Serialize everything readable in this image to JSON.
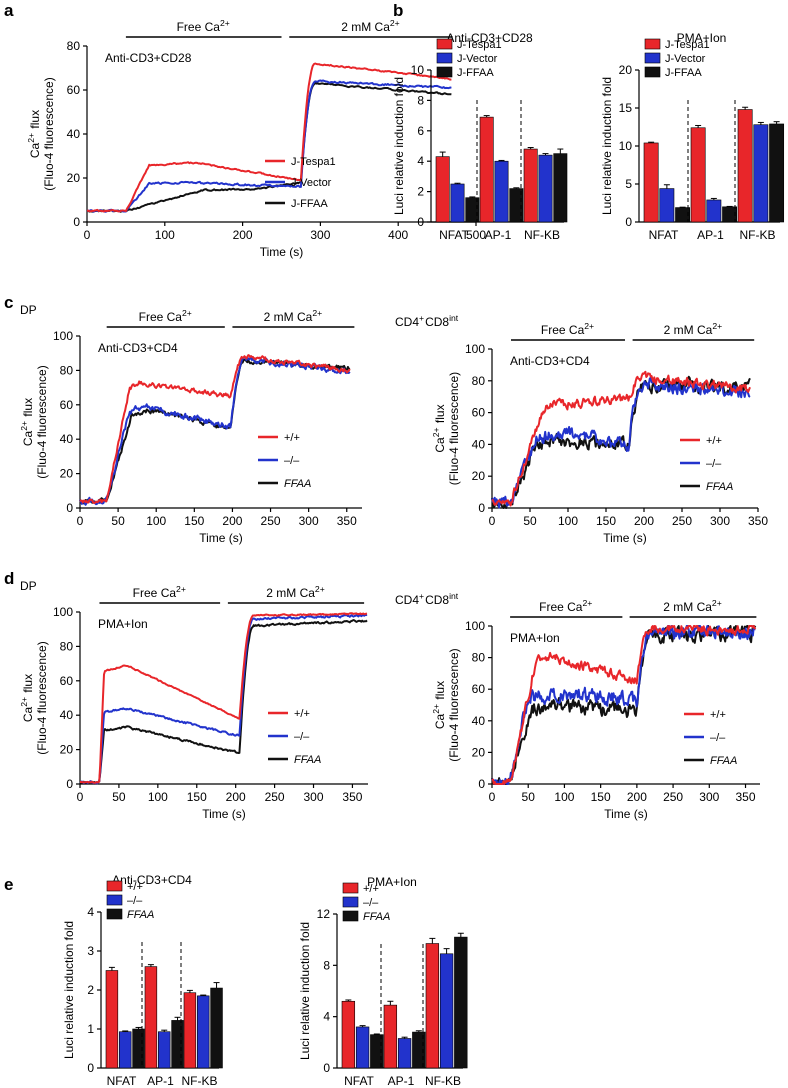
{
  "colors": {
    "red": "#e8262a",
    "blue": "#2233cc",
    "black": "#111111"
  },
  "panel_labels": [
    "a",
    "b",
    "c",
    "d",
    "e"
  ],
  "chart_data": [
    {
      "id": "a",
      "type": "line",
      "title": "Anti-CD3+CD28",
      "bracket_free": "Free Ca2+",
      "bracket_ca": "2 mM Ca2+",
      "xlabel": "Time (s)",
      "ylabel1": "Ca2+ flux",
      "ylabel2": "(Fluo-4 fluorescence)",
      "xlim": [
        0,
        500
      ],
      "ylim": [
        0,
        80
      ],
      "xticks": [
        0,
        100,
        200,
        300,
        400,
        500
      ],
      "yticks": [
        0,
        20,
        40,
        60,
        80
      ],
      "xtick_labels": [
        "0",
        "100",
        "200",
        "300",
        "400",
        "500"
      ],
      "ytick_labels": [
        "0",
        "20",
        "40",
        "60",
        "80"
      ],
      "free_range": [
        50,
        250
      ],
      "ca_range": [
        260,
        470
      ],
      "switch_t": 275,
      "end_t": 470,
      "series": [
        {
          "name": "J-Tespa1",
          "color": "red",
          "base": 5,
          "plateau": 27,
          "rise_end": 80,
          "peak_t": 140,
          "dec": 8,
          "ca_peak": 72,
          "ca_end": 65,
          "noise": 0.3
        },
        {
          "name": "J-Vector",
          "color": "blue",
          "base": 5,
          "plateau": 18,
          "rise_end": 80,
          "peak_t": 120,
          "dec": 2,
          "ca_peak": 64,
          "ca_end": 61,
          "noise": 0.4
        },
        {
          "name": "J-FFAA",
          "color": "black",
          "base": 5,
          "plateau": 15,
          "rise_end": 150,
          "peak_t": 220,
          "dec": -3,
          "ca_peak": 63,
          "ca_end": 58,
          "noise": 0.3
        }
      ]
    },
    {
      "id": "b1",
      "type": "bar",
      "title": "Anti-CD3+CD28",
      "ylabel": "Luci relative induction fold",
      "ylim": [
        0,
        10
      ],
      "yticks": [
        0,
        2,
        4,
        6,
        8,
        10
      ],
      "ytick_labels": [
        "0",
        "2",
        "4",
        "6",
        "8",
        "10"
      ],
      "categories": [
        "NFAT",
        "AP-1",
        "NF-KB"
      ],
      "series": [
        {
          "name": "J-Tespa1",
          "color": "red",
          "values": [
            4.3,
            6.9,
            4.8
          ],
          "err": [
            0.3,
            0.1,
            0.1
          ]
        },
        {
          "name": "J-Vector",
          "color": "blue",
          "values": [
            2.5,
            4.0,
            4.4
          ],
          "err": [
            0.05,
            0.05,
            0.1
          ]
        },
        {
          "name": "J-FFAA",
          "color": "black",
          "values": [
            1.6,
            2.2,
            4.5
          ],
          "err": [
            0.05,
            0.05,
            0.3
          ]
        }
      ]
    },
    {
      "id": "b2",
      "type": "bar",
      "title": "PMA+Ion",
      "ylabel": "Luci relative induction fold",
      "ylim": [
        0,
        20
      ],
      "yticks": [
        0,
        5,
        10,
        15,
        20
      ],
      "ytick_labels": [
        "0",
        "5",
        "10",
        "15",
        "20"
      ],
      "categories": [
        "NFAT",
        "AP-1",
        "NF-KB"
      ],
      "series": [
        {
          "name": "J-Tespa1",
          "color": "red",
          "values": [
            10.4,
            12.4,
            14.8
          ],
          "err": [
            0.1,
            0.3,
            0.3
          ]
        },
        {
          "name": "J-Vector",
          "color": "blue",
          "values": [
            4.4,
            2.9,
            12.8
          ],
          "err": [
            0.5,
            0.2,
            0.3
          ]
        },
        {
          "name": "J-FFAA",
          "color": "black",
          "values": [
            1.9,
            2.0,
            12.9
          ],
          "err": [
            0.05,
            0.05,
            0.3
          ]
        }
      ]
    },
    {
      "id": "c1",
      "type": "line",
      "corner": "DP",
      "title": "Anti-CD3+CD4",
      "bracket_free": "Free Ca2+",
      "bracket_ca": "2 mM Ca2+",
      "xlabel": "Time (s)",
      "ylabel1": "Ca2+ flux",
      "ylabel2": "(Fluo-4 fluorescence)",
      "xlim": [
        0,
        370
      ],
      "ylim": [
        0,
        100
      ],
      "xticks": [
        0,
        50,
        100,
        150,
        200,
        250,
        300,
        350
      ],
      "yticks": [
        0,
        20,
        40,
        60,
        80,
        100
      ],
      "xtick_labels": [
        "0",
        "50",
        "100",
        "150",
        "200",
        "250",
        "300",
        "350"
      ],
      "ytick_labels": [
        "0",
        "20",
        "40",
        "60",
        "80",
        "100"
      ],
      "free_range": [
        35,
        190
      ],
      "ca_range": [
        200,
        360
      ],
      "switch_t": 198,
      "end_t": 355,
      "series": [
        {
          "name": "+/+",
          "color": "red",
          "base": 4,
          "plateau": 73,
          "rise_end": 65,
          "peak_t": 80,
          "dec": 8,
          "ca_peak": 88,
          "ca_end": 80,
          "noise": 1.2
        },
        {
          "name": "–/–",
          "color": "blue",
          "base": 4,
          "plateau": 59,
          "rise_end": 65,
          "peak_t": 85,
          "dec": 12,
          "ca_peak": 87,
          "ca_end": 79,
          "noise": 1.5
        },
        {
          "name": "FFAA",
          "color": "black",
          "italic": true,
          "base": 4,
          "plateau": 57,
          "rise_end": 68,
          "peak_t": 90,
          "dec": 11,
          "ca_peak": 86,
          "ca_end": 81,
          "noise": 1.2
        }
      ]
    },
    {
      "id": "c2",
      "type": "line",
      "corner": "CD4+CD8int",
      "title": "Anti-CD3+CD4",
      "bracket_free": "Free Ca2+",
      "bracket_ca": "2 mM Ca2+",
      "xlabel": "Time (s)",
      "ylabel1": "Ca2+ flux",
      "ylabel2": "(Fluo-4 fluorescence)",
      "xlim": [
        0,
        350
      ],
      "ylim": [
        0,
        100
      ],
      "xticks": [
        0,
        50,
        100,
        150,
        200,
        250,
        300,
        350
      ],
      "yticks": [
        0,
        20,
        40,
        60,
        80,
        100
      ],
      "xtick_labels": [
        "0",
        "50",
        "100",
        "150",
        "200",
        "250",
        "300",
        "350"
      ],
      "ytick_labels": [
        "0",
        "20",
        "40",
        "60",
        "80",
        "100"
      ],
      "free_range": [
        25,
        175
      ],
      "ca_range": [
        185,
        345
      ],
      "switch_t": 180,
      "end_t": 340,
      "series": [
        {
          "name": "+/+",
          "color": "red",
          "base": 4,
          "plateau": 67,
          "rise_end": 70,
          "peak_t": 130,
          "dec": -2,
          "ca_peak": 82,
          "ca_end": 75,
          "noise": 2.5
        },
        {
          "name": "–/–",
          "color": "blue",
          "base": 4,
          "plateau": 47,
          "rise_end": 60,
          "peak_t": 110,
          "dec": 8,
          "ca_peak": 78,
          "ca_end": 72,
          "noise": 3.5
        },
        {
          "name": "FFAA",
          "color": "black",
          "italic": true,
          "base": 4,
          "plateau": 43,
          "rise_end": 60,
          "peak_t": 80,
          "dec": 3,
          "ca_peak": 76,
          "ca_end": 77,
          "noise": 3.5
        }
      ]
    },
    {
      "id": "d1",
      "type": "line",
      "corner": "DP",
      "title": "PMA+Ion",
      "bracket_free": "Free Ca2+",
      "bracket_ca": "2 mM Ca2+",
      "xlabel": "Time (s)",
      "ylabel1": "Ca2+ flux",
      "ylabel2": "(Fluo-4 fluorescence)",
      "xlim": [
        0,
        370
      ],
      "ylim": [
        0,
        100
      ],
      "xticks": [
        0,
        50,
        100,
        150,
        200,
        250,
        300,
        350
      ],
      "yticks": [
        0,
        20,
        40,
        60,
        80,
        100
      ],
      "xtick_labels": [
        "0",
        "50",
        "100",
        "150",
        "200",
        "250",
        "300",
        "350"
      ],
      "ytick_labels": [
        "0",
        "20",
        "40",
        "60",
        "80",
        "100"
      ],
      "free_range": [
        25,
        180
      ],
      "ca_range": [
        190,
        365
      ],
      "switch_t": 205,
      "end_t": 370,
      "series": [
        {
          "name": "+/+",
          "color": "red",
          "base": 1,
          "plateau": 69,
          "rise_end": 31,
          "peak_t": 60,
          "dec": 31,
          "ca_peak": 98,
          "ca_end": 99,
          "noise": 0.3
        },
        {
          "name": "–/–",
          "color": "blue",
          "base": 1,
          "plateau": 44,
          "rise_end": 31,
          "peak_t": 60,
          "dec": 16,
          "ca_peak": 96,
          "ca_end": 98,
          "noise": 0.5
        },
        {
          "name": "FFAA",
          "color": "black",
          "italic": true,
          "base": 1,
          "plateau": 33,
          "rise_end": 31,
          "peak_t": 60,
          "dec": 15,
          "ca_peak": 92,
          "ca_end": 95,
          "noise": 0.5
        }
      ]
    },
    {
      "id": "d2",
      "type": "line",
      "corner": "CD4+CD8int",
      "title": "PMA+Ion",
      "bracket_free": "Free Ca2+",
      "bracket_ca": "2 mM Ca2+",
      "xlabel": "Time (s)",
      "ylabel1": "Ca2+ flux",
      "ylabel2": "(Fluo-4 fluorescence)",
      "xlim": [
        0,
        370
      ],
      "ylim": [
        0,
        100
      ],
      "xticks": [
        0,
        50,
        100,
        150,
        200,
        250,
        300,
        350
      ],
      "yticks": [
        0,
        20,
        40,
        60,
        80,
        100
      ],
      "xtick_labels": [
        "0",
        "50",
        "100",
        "150",
        "200",
        "250",
        "300",
        "350"
      ],
      "ytick_labels": [
        "0",
        "20",
        "40",
        "60",
        "80",
        "100"
      ],
      "free_range": [
        25,
        180
      ],
      "ca_range": [
        190,
        365
      ],
      "switch_t": 200,
      "end_t": 365,
      "series": [
        {
          "name": "+/+",
          "color": "red",
          "base": 1,
          "plateau": 81,
          "rise_end": 60,
          "peak_t": 80,
          "dec": 16,
          "ca_peak": 98,
          "ca_end": 98,
          "noise": 2.5
        },
        {
          "name": "–/–",
          "color": "blue",
          "base": 1,
          "plateau": 58,
          "rise_end": 50,
          "peak_t": 90,
          "dec": 5,
          "ca_peak": 96,
          "ca_end": 97,
          "noise": 4
        },
        {
          "name": "FFAA",
          "color": "black",
          "italic": true,
          "base": 1,
          "plateau": 50,
          "rise_end": 55,
          "peak_t": 80,
          "dec": 4,
          "ca_peak": 94,
          "ca_end": 96,
          "noise": 4
        }
      ]
    },
    {
      "id": "e1",
      "type": "bar",
      "title": "Anti-CD3+CD4",
      "ylabel": "Luci relative induction fold",
      "ylim": [
        0,
        4
      ],
      "yticks": [
        0,
        1,
        2,
        3,
        4
      ],
      "ytick_labels": [
        "0",
        "1",
        "2",
        "3",
        "4"
      ],
      "categories": [
        "NFAT",
        "AP-1",
        "NF-KB"
      ],
      "series": [
        {
          "name": "+/+",
          "color": "red",
          "values": [
            2.5,
            2.6,
            1.93
          ],
          "err": [
            0.08,
            0.05,
            0.06
          ]
        },
        {
          "name": "–/–",
          "color": "blue",
          "values": [
            0.93,
            0.93,
            1.85
          ],
          "err": [
            0.02,
            0.04,
            0.02
          ]
        },
        {
          "name": "FFAA",
          "color": "black",
          "italic": true,
          "values": [
            1.0,
            1.22,
            2.05
          ],
          "err": [
            0.04,
            0.08,
            0.14
          ]
        }
      ]
    },
    {
      "id": "e2",
      "type": "bar",
      "title": "PMA+Ion",
      "ylabel": "Luci relative induction fold",
      "ylim": [
        0,
        12
      ],
      "yticks": [
        0,
        4,
        8,
        12
      ],
      "ytick_labels": [
        "0",
        "4",
        "8",
        "12"
      ],
      "categories": [
        "NFAT",
        "AP-1",
        "NF-KB"
      ],
      "series": [
        {
          "name": "+/+",
          "color": "red",
          "values": [
            5.2,
            4.9,
            9.7
          ],
          "err": [
            0.1,
            0.3,
            0.4
          ]
        },
        {
          "name": "–/–",
          "color": "blue",
          "values": [
            3.2,
            2.3,
            8.9
          ],
          "err": [
            0.1,
            0.1,
            0.4
          ]
        },
        {
          "name": "FFAA",
          "color": "black",
          "italic": true,
          "values": [
            2.6,
            2.8,
            10.2
          ],
          "err": [
            0.05,
            0.1,
            0.3
          ]
        }
      ]
    }
  ]
}
